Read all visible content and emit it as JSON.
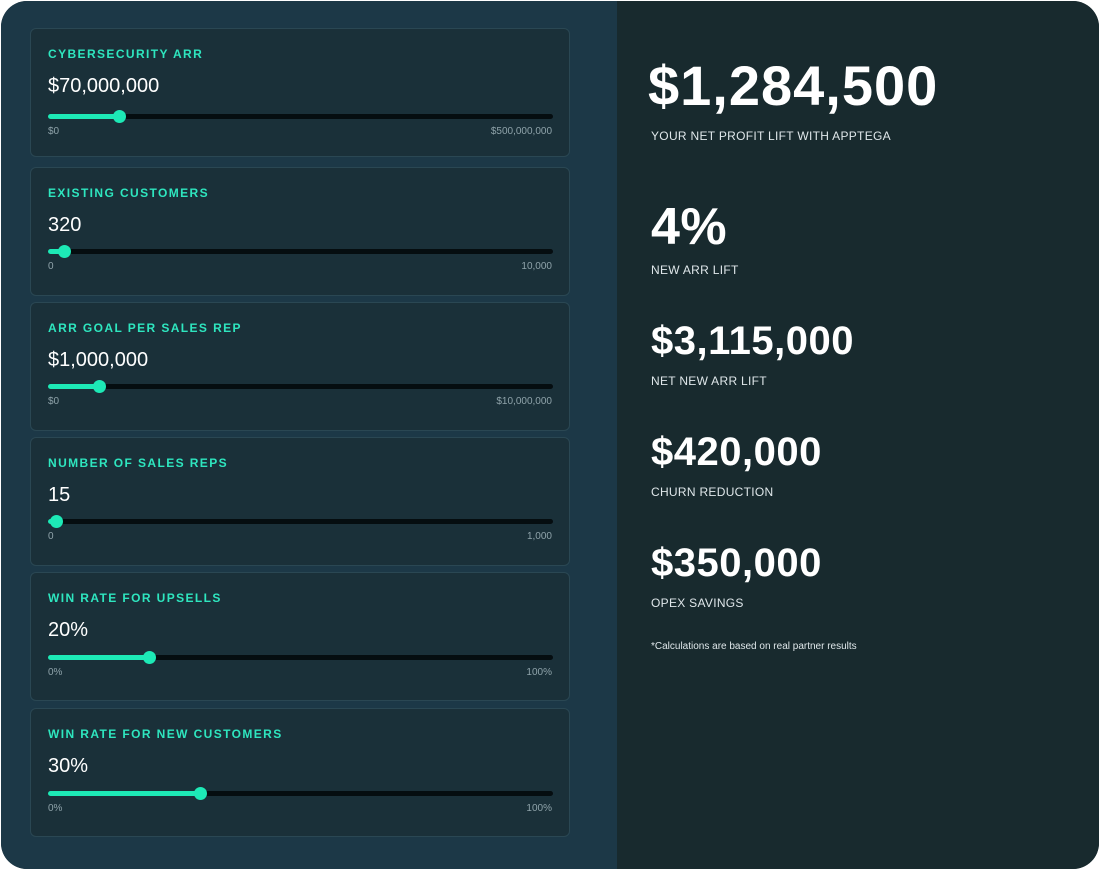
{
  "inputs": [
    {
      "label": "CYBERSECURITY ARR",
      "value": "$70,000,000",
      "min_label": "$0",
      "max_label": "$500,000,000",
      "fraction": 0.14
    },
    {
      "label": "EXISTING CUSTOMERS",
      "value": "320",
      "min_label": "0",
      "max_label": "10,000",
      "fraction": 0.032
    },
    {
      "label": "ARR GOAL PER SALES REP",
      "value": "$1,000,000",
      "min_label": "$0",
      "max_label": "$10,000,000",
      "fraction": 0.1
    },
    {
      "label": "NUMBER OF SALES REPS",
      "value": "15",
      "min_label": "0",
      "max_label": "1,000",
      "fraction": 0.015
    },
    {
      "label": "WIN RATE FOR UPSELLS",
      "value": "20%",
      "min_label": "0%",
      "max_label": "100%",
      "fraction": 0.2
    },
    {
      "label": "WIN RATE FOR NEW CUSTOMERS",
      "value": "30%",
      "min_label": "0%",
      "max_label": "100%",
      "fraction": 0.3
    }
  ],
  "results": {
    "hero": {
      "value": "$1,284,500",
      "label": "YOUR NET PROFIT LIFT WITH APPTEGA"
    },
    "metrics": [
      {
        "value": "4%",
        "label": "NEW ARR LIFT"
      },
      {
        "value": "$3,115,000",
        "label": "NET NEW ARR LIFT"
      },
      {
        "value": "$420,000",
        "label": "CHURN REDUCTION"
      },
      {
        "value": "$350,000",
        "label": "OPEX SAVINGS"
      }
    ],
    "footnote": "*Calculations are based on real partner results"
  },
  "colors": {
    "accent": "#1de9b6",
    "left_panel": "#1c3847",
    "right_panel": "#182a2e"
  }
}
